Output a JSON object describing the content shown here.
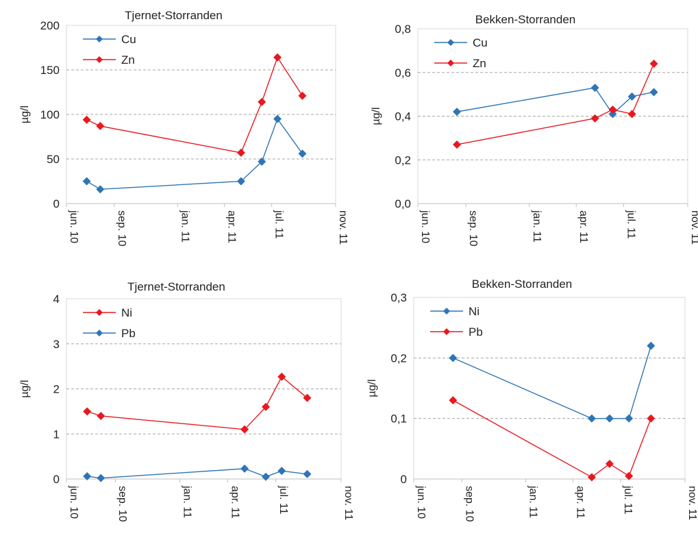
{
  "colors": {
    "blue": "#2e75b6",
    "red": "#e8181f",
    "grid": "#a6a6a6",
    "axis": "#d9d9d9"
  },
  "chart_data": [
    {
      "type": "line",
      "title": "Tjernet-Storranden",
      "ylabel": "µg/l",
      "ylim": [
        0,
        200
      ],
      "yticks": [
        0,
        50,
        100,
        150,
        200
      ],
      "ytick_labels": [
        "0",
        "50",
        "100",
        "150",
        "200"
      ],
      "xticks": [
        "2010-06-01",
        "2010-09-01",
        "2011-01-01",
        "2011-04-01",
        "2011-07-01",
        "2011-11-01"
      ],
      "xtick_labels": [
        "jun. 10",
        "sep. 10",
        "jan. 11",
        "apr. 11",
        "jul. 11",
        "nov. 11"
      ],
      "xlim": [
        "2010-06-01",
        "2011-11-01"
      ],
      "legend": "top-left",
      "grid": "horizontal dashed",
      "series": [
        {
          "name": "Cu",
          "color": "#2e75b6",
          "x": [
            "2010-07-10",
            "2010-08-05",
            "2011-05-03",
            "2011-06-12",
            "2011-07-12",
            "2011-08-29"
          ],
          "y": [
            25,
            16,
            25,
            47,
            95,
            56
          ]
        },
        {
          "name": "Zn",
          "color": "#e8181f",
          "x": [
            "2010-07-10",
            "2010-08-05",
            "2011-05-03",
            "2011-06-12",
            "2011-07-12",
            "2011-08-29"
          ],
          "y": [
            94,
            87,
            57,
            114,
            164,
            121
          ]
        }
      ]
    },
    {
      "type": "line",
      "title": "Bekken-Storranden",
      "ylabel": "µg/l",
      "ylim": [
        0,
        0.8
      ],
      "yticks": [
        0,
        0.2,
        0.4,
        0.6,
        0.8
      ],
      "ytick_labels": [
        "0,0",
        "0,2",
        "0,4",
        "0,6",
        "0,8"
      ],
      "xticks": [
        "2010-06-01",
        "2010-09-01",
        "2011-01-01",
        "2011-04-01",
        "2011-07-01",
        "2011-11-01"
      ],
      "xtick_labels": [
        "jun. 10",
        "sep. 10",
        "jan. 11",
        "apr. 11",
        "jul. 11",
        "nov. 11"
      ],
      "xlim": [
        "2010-06-01",
        "2011-11-01"
      ],
      "legend": "top-left",
      "grid": "horizontal dashed",
      "series": [
        {
          "name": "Cu",
          "color": "#2e75b6",
          "x": [
            "2010-08-15",
            "2011-05-07",
            "2011-06-10",
            "2011-07-17",
            "2011-08-28"
          ],
          "y": [
            0.42,
            0.53,
            0.41,
            0.49,
            0.51
          ]
        },
        {
          "name": "Zn",
          "color": "#e8181f",
          "x": [
            "2010-08-15",
            "2011-05-07",
            "2011-06-10",
            "2011-07-17",
            "2011-08-28"
          ],
          "y": [
            0.27,
            0.39,
            0.43,
            0.41,
            0.64
          ]
        }
      ]
    },
    {
      "type": "line",
      "title": "Tjernet-Storranden",
      "ylabel": "µg/l",
      "ylim": [
        0,
        4
      ],
      "yticks": [
        0,
        1,
        2,
        3,
        4
      ],
      "ytick_labels": [
        "0",
        "1",
        "2",
        "3",
        "4"
      ],
      "xticks": [
        "2010-06-01",
        "2010-09-01",
        "2011-01-01",
        "2011-04-01",
        "2011-07-01",
        "2011-11-01"
      ],
      "xtick_labels": [
        "jun. 10",
        "sep. 10",
        "jan. 11",
        "apr. 11",
        "jul. 11",
        "nov. 11"
      ],
      "xlim": [
        "2010-06-01",
        "2011-11-01"
      ],
      "legend": "top-left",
      "grid": "horizontal dashed",
      "series": [
        {
          "name": "Ni",
          "color": "#e8181f",
          "x": [
            "2010-07-10",
            "2010-08-05",
            "2011-05-03",
            "2011-06-12",
            "2011-07-12",
            "2011-08-29"
          ],
          "y": [
            1.5,
            1.4,
            1.1,
            1.6,
            2.27,
            1.8
          ]
        },
        {
          "name": "Pb",
          "color": "#2e75b6",
          "x": [
            "2010-07-10",
            "2010-08-05",
            "2011-05-03",
            "2011-06-12",
            "2011-07-12",
            "2011-08-29"
          ],
          "y": [
            0.06,
            0.02,
            0.23,
            0.05,
            0.18,
            0.11
          ]
        }
      ]
    },
    {
      "type": "line",
      "title": "Bekken-Storranden",
      "ylabel": "µg/l",
      "ylim": [
        0,
        0.3
      ],
      "yticks": [
        0,
        0.1,
        0.2,
        0.3
      ],
      "ytick_labels": [
        "0",
        "0,1",
        "0,2",
        "0,3"
      ],
      "xticks": [
        "2010-06-01",
        "2010-09-01",
        "2011-01-01",
        "2011-04-01",
        "2011-07-01",
        "2011-11-01"
      ],
      "xtick_labels": [
        "jun. 10",
        "sep. 10",
        "jan. 11",
        "apr. 11",
        "jul. 11",
        "nov. 11"
      ],
      "xlim": [
        "2010-06-01",
        "2011-11-01"
      ],
      "legend": "top-left",
      "grid": "horizontal dashed",
      "series": [
        {
          "name": "Ni",
          "color": "#2e75b6",
          "x": [
            "2010-08-15",
            "2011-05-07",
            "2011-06-10",
            "2011-07-17",
            "2011-08-28"
          ],
          "y": [
            0.2,
            0.1,
            0.1,
            0.1,
            0.22
          ]
        },
        {
          "name": "Pb",
          "color": "#e8181f",
          "x": [
            "2010-08-15",
            "2011-05-07",
            "2011-06-10",
            "2011-07-17",
            "2011-08-28"
          ],
          "y": [
            0.13,
            0.003,
            0.025,
            0.005,
            0.1
          ]
        }
      ]
    }
  ]
}
